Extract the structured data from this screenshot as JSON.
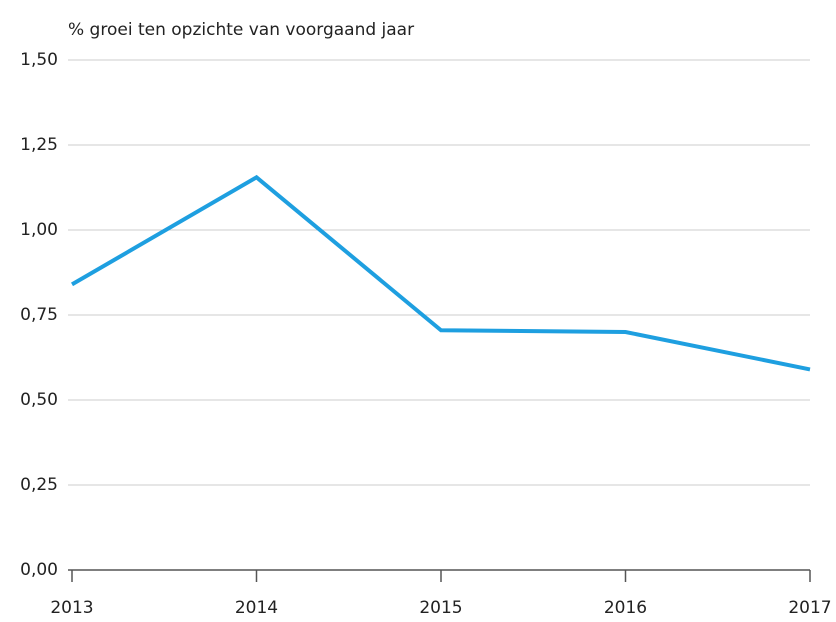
{
  "chart_data": {
    "type": "line",
    "title": "% groei ten opzichte van voorgaand jaar",
    "categories": [
      "2013",
      "2014",
      "2015",
      "2016",
      "2017"
    ],
    "series": [
      {
        "color": "#1e9fe0",
        "values": [
          0.84,
          1.155,
          0.705,
          0.7,
          0.59
        ]
      }
    ],
    "ylim": [
      0,
      1.5
    ],
    "yticks": [
      {
        "value": 0,
        "label": "0,00"
      },
      {
        "value": 0.25,
        "label": "0,25"
      },
      {
        "value": 0.5,
        "label": "0,50"
      },
      {
        "value": 0.75,
        "label": "0,75"
      },
      {
        "value": 1,
        "label": "1,00"
      },
      {
        "value": 1.25,
        "label": "1,25"
      },
      {
        "value": 1.5,
        "label": "1,50"
      }
    ],
    "grid": true
  }
}
